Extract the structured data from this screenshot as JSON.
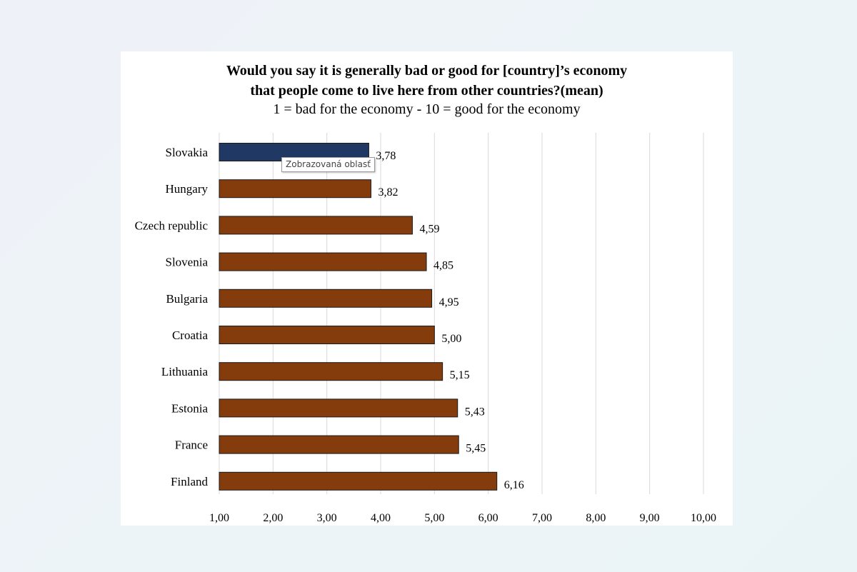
{
  "chart_data": {
    "type": "bar",
    "orientation": "horizontal",
    "title_line_1": "Would you say it is generally bad or good for [country]’s economy",
    "title_line_2": "that people come to live here from other countries?(mean)",
    "subtitle": "1 = bad for the economy - 10 = good for the economy",
    "categories": [
      "Slovakia",
      "Hungary",
      "Czech republic",
      "Slovenia",
      "Bulgaria",
      "Croatia",
      "Lithuania",
      "Estonia",
      "France",
      "Finland"
    ],
    "values": [
      3.78,
      3.82,
      4.59,
      4.85,
      4.95,
      5.0,
      5.15,
      5.43,
      5.45,
      6.16
    ],
    "value_labels": [
      "3,78",
      "3,82",
      "4,59",
      "4,85",
      "4,95",
      "5,00",
      "5,15",
      "5,43",
      "5,45",
      "6,16"
    ],
    "xlim": [
      1,
      10
    ],
    "xticks": [
      "1,00",
      "2,00",
      "3,00",
      "4,00",
      "5,00",
      "6,00",
      "7,00",
      "8,00",
      "9,00",
      "10,00"
    ],
    "grid": true,
    "legend": false,
    "colors": {
      "default_bar": "#843c0c",
      "highlight_bar": "#1f3864"
    },
    "highlight_category": "Slovakia"
  },
  "tooltip": {
    "text": "Zobrazovaná oblasť"
  }
}
